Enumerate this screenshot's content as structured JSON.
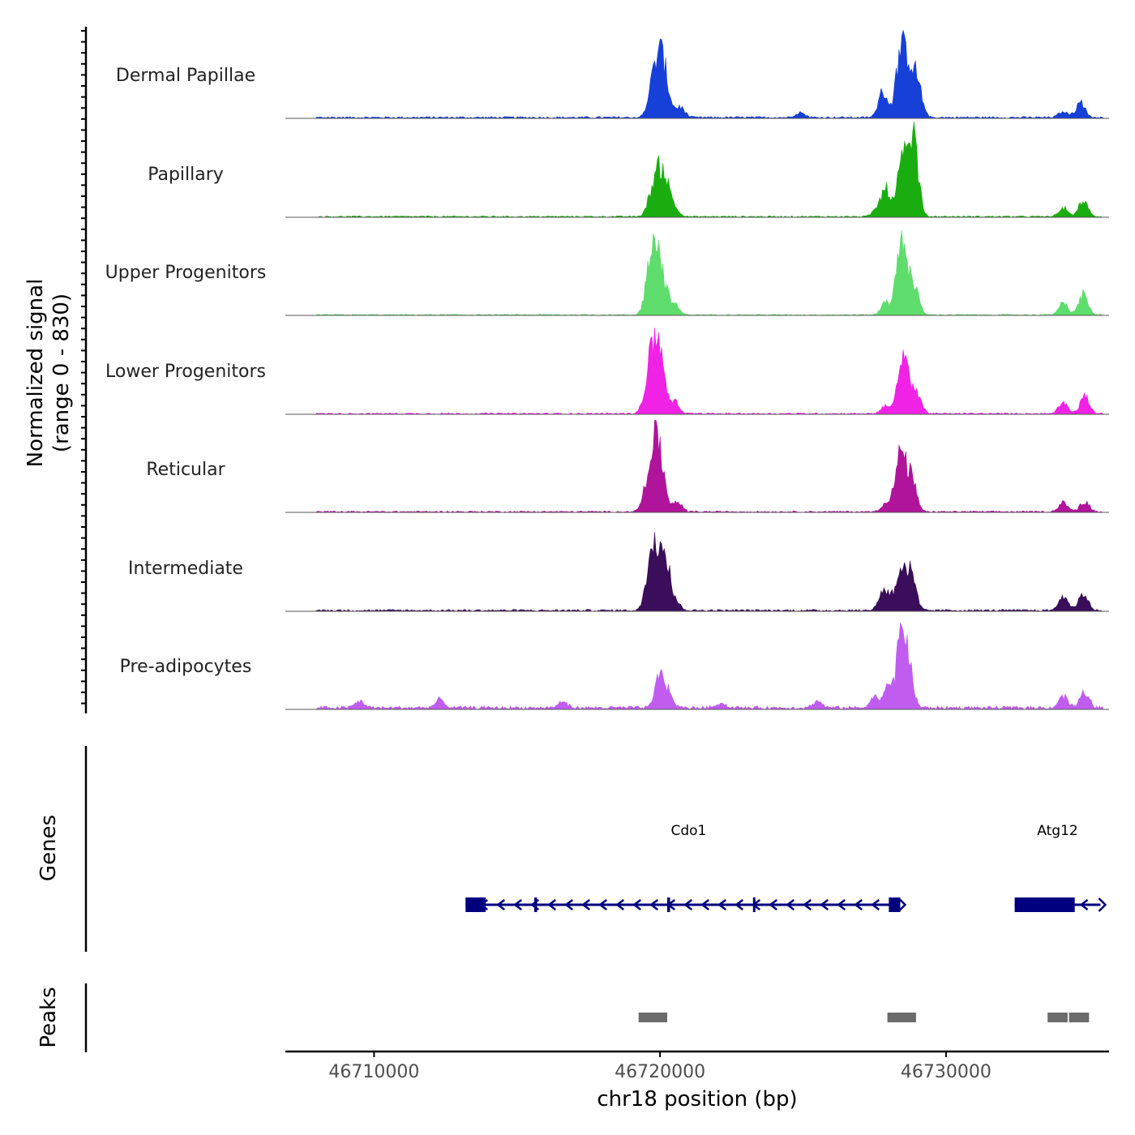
{
  "chart_data": {
    "type": "area",
    "title": "",
    "ylabel_line1": "Normalized signal",
    "ylabel_line2": "(range 0 - 830)",
    "y_range": [
      0,
      830
    ],
    "xlabel": "chr18 position (bp)",
    "chromosome": "chr18",
    "x_range": [
      46706900,
      46735700
    ],
    "x_ticks": [
      46710000,
      46720000,
      46730000
    ],
    "x_tick_labels": [
      "46710000",
      "46720000",
      "46730000"
    ],
    "tracks": [
      {
        "name": "Dermal Papillae",
        "color": "#1740D9",
        "peaks": [
          [
            46719700,
            0.25
          ],
          [
            46719900,
            0.33
          ],
          [
            46720050,
            0.44
          ],
          [
            46720250,
            0.22
          ],
          [
            46720700,
            0.12
          ],
          [
            46724900,
            0.06
          ],
          [
            46727800,
            0.31
          ],
          [
            46728400,
            0.72
          ],
          [
            46728700,
            0.52
          ],
          [
            46729000,
            0.4
          ],
          [
            46734100,
            0.07
          ],
          [
            46734700,
            0.18
          ]
        ],
        "noise": 0.02
      },
      {
        "name": "Papillary",
        "color": "#1AAD0F",
        "peaks": [
          [
            46719700,
            0.22
          ],
          [
            46719950,
            0.42
          ],
          [
            46720200,
            0.35
          ],
          [
            46720500,
            0.1
          ],
          [
            46727600,
            0.08
          ],
          [
            46727900,
            0.32
          ],
          [
            46728450,
            0.6
          ],
          [
            46728900,
            0.66
          ],
          [
            46728750,
            0.35
          ],
          [
            46734100,
            0.1
          ],
          [
            46734800,
            0.18
          ]
        ],
        "noise": 0.015
      },
      {
        "name": "Upper Progenitors",
        "color": "#5EDD6C",
        "peaks": [
          [
            46719800,
            0.78
          ],
          [
            46720100,
            0.4
          ],
          [
            46719600,
            0.3
          ],
          [
            46720500,
            0.12
          ],
          [
            46727900,
            0.15
          ],
          [
            46728400,
            0.65
          ],
          [
            46728600,
            0.35
          ],
          [
            46728900,
            0.3
          ],
          [
            46734100,
            0.15
          ],
          [
            46734800,
            0.24
          ]
        ],
        "noise": 0.012
      },
      {
        "name": "Lower Progenitors",
        "color": "#F022E6",
        "peaks": [
          [
            46719800,
            0.68
          ],
          [
            46720050,
            0.52
          ],
          [
            46719550,
            0.28
          ],
          [
            46720500,
            0.14
          ],
          [
            46727900,
            0.1
          ],
          [
            46728450,
            0.52
          ],
          [
            46728700,
            0.3
          ],
          [
            46729000,
            0.18
          ],
          [
            46734100,
            0.13
          ],
          [
            46734850,
            0.2
          ]
        ],
        "noise": 0.015
      },
      {
        "name": "Reticular",
        "color": "#B0149A",
        "peaks": [
          [
            46719800,
            0.65
          ],
          [
            46720050,
            0.45
          ],
          [
            46719550,
            0.28
          ],
          [
            46720600,
            0.12
          ],
          [
            46727900,
            0.1
          ],
          [
            46728450,
            0.6
          ],
          [
            46728800,
            0.38
          ],
          [
            46728250,
            0.18
          ],
          [
            46734100,
            0.11
          ],
          [
            46734850,
            0.12
          ]
        ],
        "noise": 0.015
      },
      {
        "name": "Intermediate",
        "color": "#3A0E5A",
        "peaks": [
          [
            46719650,
            0.54
          ],
          [
            46719950,
            0.6
          ],
          [
            46720200,
            0.55
          ],
          [
            46720550,
            0.1
          ],
          [
            46727800,
            0.22
          ],
          [
            46728450,
            0.52
          ],
          [
            46728800,
            0.4
          ],
          [
            46728100,
            0.12
          ],
          [
            46734100,
            0.18
          ],
          [
            46734800,
            0.2
          ]
        ],
        "noise": 0.02
      },
      {
        "name": "Pre-adipocytes",
        "color": "#C05DF0",
        "peaks": [
          [
            46709500,
            0.08
          ],
          [
            46712300,
            0.09
          ],
          [
            46716600,
            0.07
          ],
          [
            46720000,
            0.4
          ],
          [
            46720300,
            0.15
          ],
          [
            46722100,
            0.06
          ],
          [
            46725500,
            0.07
          ],
          [
            46728000,
            0.3
          ],
          [
            46728450,
            0.85
          ],
          [
            46728700,
            0.4
          ],
          [
            46727500,
            0.12
          ],
          [
            46734100,
            0.14
          ],
          [
            46734850,
            0.18
          ]
        ],
        "noise": 0.035
      }
    ],
    "genes_label": "Genes",
    "genes": [
      {
        "name": "Cdo1",
        "start": 46713200,
        "end": 46728400,
        "strand": "-",
        "exons": [
          [
            46713200,
            46713900
          ],
          [
            46715600,
            46715700
          ],
          [
            46720250,
            46720350
          ],
          [
            46723250,
            46723300
          ],
          [
            46728000,
            46728400
          ]
        ]
      },
      {
        "name": "Atg12",
        "start": 46732400,
        "end": 46735400,
        "strand": "-",
        "exons": [
          [
            46732400,
            46734500
          ]
        ]
      }
    ],
    "peaks_label": "Peaks",
    "peak_regions": [
      [
        46719250,
        46720250
      ],
      [
        46727950,
        46728950
      ],
      [
        46733550,
        46734250
      ],
      [
        46734300,
        46735000
      ]
    ],
    "peak_color": "#6B6B6B",
    "gene_color": "#00007F"
  }
}
